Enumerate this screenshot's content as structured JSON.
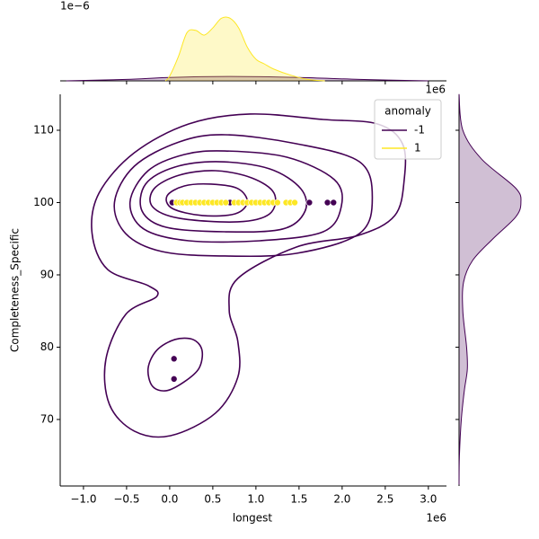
{
  "chart_data": {
    "type": "scatter",
    "x_label": "longest",
    "y_label": "Completeness_Specific",
    "x_offset": "1e6",
    "xlim": [
      -1.27,
      3.21
    ],
    "ylim": [
      60.8,
      114.97
    ],
    "xticks": [
      {
        "value": -1.0,
        "label": "−1.0"
      },
      {
        "value": -0.5,
        "label": "−0.5"
      },
      {
        "value": 0.0,
        "label": "0.0"
      },
      {
        "value": 0.5,
        "label": "0.5"
      },
      {
        "value": 1.0,
        "label": "1.0"
      },
      {
        "value": 1.5,
        "label": "1.5"
      },
      {
        "value": 2.0,
        "label": "2.0"
      },
      {
        "value": 2.5,
        "label": "2.5"
      },
      {
        "value": 3.0,
        "label": "3.0"
      }
    ],
    "yticks": [
      70,
      80,
      90,
      100,
      110
    ],
    "legend_title": "anomaly",
    "legend": "upper right",
    "series": [
      {
        "name": "-1",
        "color": "#440154",
        "x": [
          0.03,
          0.7,
          1.62,
          1.83,
          1.9,
          0.05,
          0.05
        ],
        "y": [
          100,
          100,
          100,
          100,
          100,
          78.4,
          75.6
        ]
      },
      {
        "name": "1",
        "color": "#fde725",
        "x": [
          0.08,
          0.12,
          0.15,
          0.2,
          0.25,
          0.3,
          0.35,
          0.4,
          0.45,
          0.5,
          0.55,
          0.6,
          0.65,
          0.75,
          0.8,
          0.85,
          0.9,
          0.95,
          1.0,
          1.05,
          1.1,
          1.15,
          1.2,
          1.25,
          1.35,
          1.4,
          1.45
        ],
        "y": [
          100,
          100,
          100,
          100,
          100,
          100,
          100,
          100,
          100,
          100,
          100,
          100,
          100,
          100,
          100,
          100,
          100,
          100,
          100,
          100,
          100,
          100,
          100,
          100,
          100,
          100,
          100
        ]
      }
    ],
    "contours": {
      "color": "#440154",
      "levels": [
        {
          "x": [
            0.93,
            1.78,
            2.41,
            2.7,
            2.72,
            2.61,
            2.19,
            1.47,
            0.79,
            0.69,
            0.79,
            0.79,
            0.53,
            0.01,
            -0.41,
            -0.7,
            -0.74,
            -0.51,
            -0.15,
            -0.25,
            -0.72,
            -0.9,
            -0.82,
            -0.41,
            0.22
          ],
          "y": [
            112.24,
            111.49,
            110.87,
            108.14,
            103.17,
            98.2,
            95.47,
            93.85,
            89.5,
            85.16,
            80.81,
            75.84,
            70.87,
            67.76,
            68.39,
            72.11,
            78.32,
            84.53,
            87.02,
            88.51,
            90.75,
            95.71,
            101.3,
            106.89,
            110.87
          ]
        },
        {
          "x": [
            0.375,
            0.27,
            0.06,
            -0.15,
            -0.25,
            -0.2,
            -0.04,
            0.17,
            0.34
          ],
          "y": [
            79.57,
            81.06,
            81.06,
            79.57,
            77.08,
            74.6,
            73.98,
            75.22,
            77.08
          ]
        },
        {
          "x": [
            0.64,
            1.47,
            2.2,
            2.35,
            2.2,
            1.47,
            0.64,
            -0.09,
            -0.51,
            -0.64,
            -0.41,
            0.11
          ],
          "y": [
            109.38,
            108.14,
            105.65,
            100.68,
            95.71,
            92.98,
            92.61,
            93.23,
            95.71,
            100.06,
            105.03,
            108.39
          ]
        },
        {
          "x": [
            0.64,
            1.36,
            1.91,
            1.99,
            1.78,
            1.05,
            0.22,
            -0.3,
            -0.46,
            -0.25,
            0.17
          ],
          "y": [
            107.14,
            106.27,
            103.17,
            99.44,
            95.96,
            94.72,
            94.72,
            96.34,
            100.06,
            104.41,
            106.65
          ]
        },
        {
          "x": [
            0.58,
            1.16,
            1.52,
            1.57,
            1.31,
            0.64,
            -0.04,
            -0.32,
            -0.28,
            0.06
          ],
          "y": [
            105.65,
            104.66,
            101.93,
            98.82,
            96.34,
            95.96,
            96.58,
            98.82,
            102.55,
            104.91
          ]
        },
        {
          "x": [
            0.53,
            0.95,
            1.21,
            1.16,
            0.79,
            0.11,
            -0.2,
            -0.18,
            0.11
          ],
          "y": [
            104.41,
            103.42,
            101.3,
            98.45,
            97.33,
            97.83,
            99.44,
            101.93,
            103.79
          ]
        },
        {
          "x": [
            0.48,
            0.79,
            0.9,
            0.76,
            0.38,
            0.03,
            -0.03,
            0.17
          ],
          "y": [
            102.55,
            101.93,
            100.06,
            98.45,
            98.2,
            99.19,
            100.93,
            102.3
          ]
        }
      ]
    },
    "top_marginal": {
      "offset": "1e−6",
      "ylim": [
        0,
        1.4
      ],
      "fill_opacity": 0.25,
      "curves": [
        {
          "color": "#440154",
          "x": [
            -1.2,
            -0.5,
            0.0,
            0.7,
            1.5,
            2.2,
            3.0
          ],
          "y": [
            0,
            0.03,
            0.07,
            0.09,
            0.07,
            0.03,
            0
          ]
        },
        {
          "color": "#fde725",
          "x": [
            -0.05,
            0.0,
            0.1,
            0.2,
            0.3,
            0.4,
            0.5,
            0.6,
            0.7,
            0.8,
            0.9,
            1.0,
            1.1,
            1.2,
            1.4,
            1.6,
            1.8
          ],
          "y": [
            0,
            0.1,
            0.5,
            1.0,
            1.05,
            0.95,
            1.1,
            1.3,
            1.3,
            1.1,
            0.7,
            0.45,
            0.35,
            0.25,
            0.12,
            0.03,
            0
          ]
        }
      ]
    },
    "right_marginal": {
      "offset": "1e6",
      "xlim": [
        0,
        1
      ],
      "fill_opacity": 0.25,
      "curves": [
        {
          "color": "#440154",
          "y": [
            115,
            110,
            106,
            102,
            100,
            98,
            95,
            92,
            89,
            85,
            80,
            77,
            74,
            70,
            65,
            61
          ],
          "x": [
            0,
            0.05,
            0.3,
            0.75,
            0.82,
            0.75,
            0.45,
            0.18,
            0.06,
            0.05,
            0.1,
            0.11,
            0.07,
            0.03,
            0.005,
            0
          ]
        }
      ]
    }
  }
}
